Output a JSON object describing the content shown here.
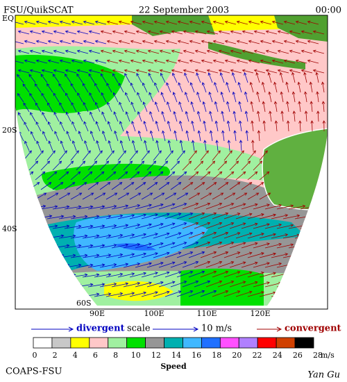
{
  "header": {
    "source": "FSU/QuikSCAT",
    "date": "22 September 2003",
    "time": "00:00"
  },
  "lat_labels": [
    "EQ",
    "20S",
    "40S",
    "60S"
  ],
  "lon_labels": [
    "90E",
    "100E",
    "110E",
    "120E"
  ],
  "scale": {
    "divergent": "divergent",
    "word": "scale",
    "speed": "10 m/s",
    "convergent": "convergent"
  },
  "colorbar": {
    "labels": [
      "0",
      "2",
      "4",
      "6",
      "8",
      "10",
      "12",
      "14",
      "16",
      "18",
      "20",
      "22",
      "24",
      "26",
      "28"
    ],
    "unit": "m/s",
    "title": "Speed",
    "colors": [
      "#ffffff",
      "#c8c8c8",
      "#ffff00",
      "#ffc8c8",
      "#a0f0a0",
      "#00e000",
      "#969696",
      "#00b0b0",
      "#40b8ff",
      "#2070ff",
      "#ff50ff",
      "#b080ff",
      "#ff0000",
      "#d04000",
      "#000000"
    ]
  },
  "footer": {
    "org": "COAPS-FSU",
    "author": "Yan Gu"
  }
}
